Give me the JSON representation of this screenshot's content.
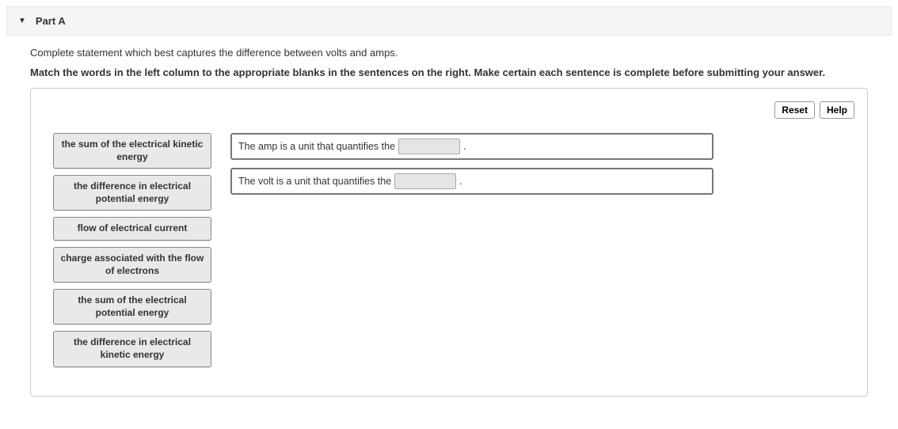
{
  "part": {
    "label": "Part A",
    "question": "Complete statement which best captures the difference between volts and amps.",
    "instruction": "Match the words in the left column to the appropriate blanks in the sentences on the right. Make certain each sentence is complete before submitting your answer."
  },
  "toolbar": {
    "reset_label": "Reset",
    "help_label": "Help"
  },
  "source_items": [
    "the sum of the electrical kinetic energy",
    "the difference in electrical potential energy",
    "flow of electrical current",
    "charge associated with the flow of electrons",
    "the sum of the electrical potential energy",
    "the difference in electrical kinetic energy"
  ],
  "sentences": [
    {
      "prefix": "The amp is a unit that quantifies the",
      "suffix": "."
    },
    {
      "prefix": "The volt is a unit that quantifies the",
      "suffix": "."
    }
  ]
}
